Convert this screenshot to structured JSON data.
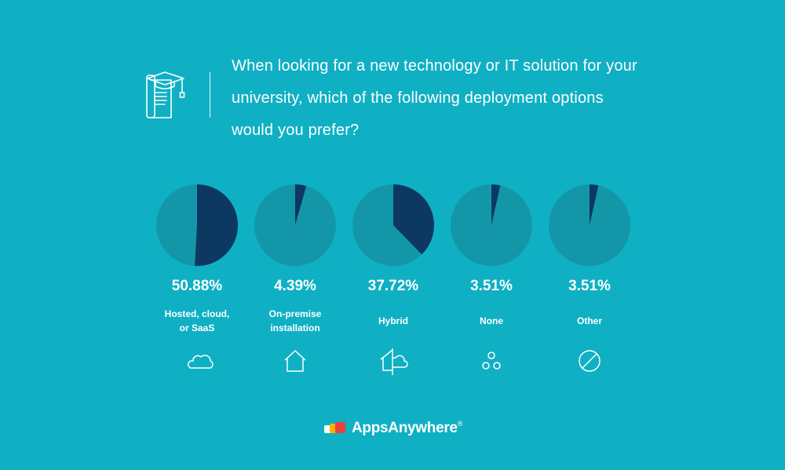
{
  "header": {
    "question": "When looking for a new technology or IT solution for your university, which of the following deployment options would you prefer?",
    "icon": "graduation-cap-document-icon"
  },
  "colors": {
    "background": "#0fb0c4",
    "pie_base": "#1397a8",
    "pie_slice": "#0c3862"
  },
  "chart_data": {
    "type": "pie",
    "charts": [
      {
        "category": "Hosted, cloud, or SaaS",
        "value": 50.88,
        "value_label": "50.88%",
        "label_lines": [
          "Hosted, cloud,",
          "or SaaS"
        ],
        "icon": "cloud-icon"
      },
      {
        "category": "On-premise installation",
        "value": 4.39,
        "value_label": "4.39%",
        "label_lines": [
          "On-premise",
          "installation"
        ],
        "icon": "house-icon"
      },
      {
        "category": "Hybrid",
        "value": 37.72,
        "value_label": "37.72%",
        "label_lines": [
          "Hybrid"
        ],
        "icon": "house-cloud-icon"
      },
      {
        "category": "None",
        "value": 3.51,
        "value_label": "3.51%",
        "label_lines": [
          "None"
        ],
        "icon": "circles-icon"
      },
      {
        "category": "Other",
        "value": 3.51,
        "value_label": "3.51%",
        "label_lines": [
          "Other"
        ],
        "icon": "prohibited-icon"
      }
    ]
  },
  "footer": {
    "logo_text": "AppsAnywhere",
    "registered_mark": "®"
  }
}
